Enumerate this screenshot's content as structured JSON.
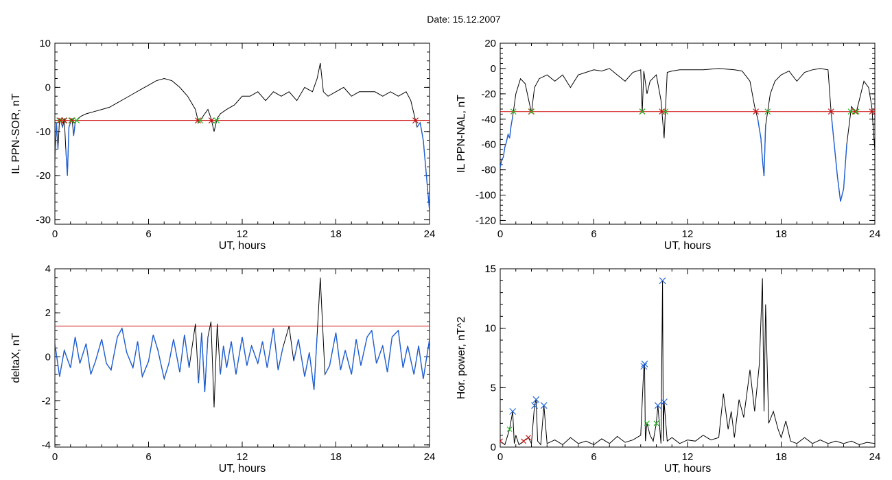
{
  "figure": {
    "title": "Date:  15.12.2007"
  },
  "colors": {
    "trace": "#000000",
    "threshold": "#cc0000",
    "highlight": "#1f5fd6",
    "marker_red": "#cc1111",
    "marker_green": "#22bb22",
    "marker_blue": "#2266dd"
  },
  "chart_data": [
    {
      "id": "ppn-sor",
      "type": "line",
      "xlabel": "UT, hours",
      "ylabel": "IL PPN-SOR, nT",
      "xlim": [
        0,
        24
      ],
      "ylim": [
        -31,
        10
      ],
      "xticks": [
        0,
        6,
        12,
        18,
        24
      ],
      "yticks": [
        -30,
        -20,
        -10,
        0,
        10
      ],
      "threshold": -7.5,
      "x": [
        0,
        0.1,
        0.2,
        0.3,
        0.4,
        0.5,
        0.6,
        0.7,
        0.8,
        0.9,
        1.0,
        1.1,
        1.2,
        1.3,
        1.5,
        1.7,
        2.0,
        2.5,
        3.0,
        3.5,
        4.0,
        4.5,
        5.0,
        5.5,
        6.0,
        6.5,
        7.0,
        7.5,
        8.0,
        8.5,
        9.0,
        9.2,
        9.4,
        9.6,
        9.8,
        10.0,
        10.2,
        10.4,
        10.6,
        11.0,
        11.5,
        12.0,
        12.5,
        13.0,
        13.5,
        14.0,
        14.5,
        15.0,
        15.5,
        16.0,
        16.5,
        16.8,
        17.0,
        17.2,
        17.5,
        18.0,
        18.5,
        19.0,
        19.5,
        20.0,
        20.5,
        21.0,
        21.5,
        22.0,
        22.5,
        22.8,
        23.0,
        23.2,
        23.4,
        23.6,
        23.8,
        24.0
      ],
      "y": [
        -17,
        -8,
        -14,
        -7,
        -8,
        -9,
        -7,
        -14,
        -20,
        -9,
        -8,
        -7,
        -11,
        -8,
        -7,
        -6.5,
        -6,
        -5.5,
        -5,
        -4.5,
        -3.5,
        -2.5,
        -1.5,
        -0.5,
        0.5,
        1.5,
        2,
        1.5,
        0,
        -2,
        -5,
        -8,
        -7,
        -6,
        -5,
        -7,
        -10,
        -7,
        -6,
        -5,
        -4,
        -2,
        -2,
        -1,
        -3,
        -1,
        -2,
        -1,
        -3,
        0,
        -1,
        2,
        5.5,
        -1,
        -2,
        -1,
        0,
        -2,
        -1,
        -1,
        -1,
        -2,
        -1,
        -2,
        -1,
        -3,
        -6,
        -9,
        -8,
        -12,
        -20,
        -28
      ]
    },
    {
      "id": "ppn-nal",
      "type": "line",
      "xlabel": "UT, hours",
      "ylabel": "IL PPN-NAL, nT",
      "xlim": [
        0,
        24
      ],
      "ylim": [
        -123,
        20
      ],
      "xticks": [
        0,
        6,
        12,
        18,
        24
      ],
      "yticks": [
        -120,
        -100,
        -80,
        -60,
        -40,
        -20,
        0,
        20
      ],
      "threshold": -34,
      "x": [
        0,
        0.1,
        0.2,
        0.3,
        0.4,
        0.5,
        0.6,
        0.7,
        0.8,
        1.0,
        1.3,
        1.6,
        2.0,
        2.2,
        2.5,
        3.0,
        3.5,
        4.0,
        4.5,
        5.0,
        5.5,
        6.0,
        6.5,
        7.0,
        7.5,
        8.0,
        8.5,
        9.0,
        9.1,
        9.2,
        9.4,
        9.6,
        10.0,
        10.3,
        10.5,
        10.7,
        11.0,
        11.5,
        12.0,
        13.0,
        14.0,
        15.0,
        15.5,
        16.0,
        16.3,
        16.5,
        16.7,
        16.8,
        16.9,
        17.0,
        17.3,
        17.6,
        18.0,
        18.5,
        19.0,
        19.5,
        20.0,
        20.5,
        21.0,
        21.2,
        21.4,
        21.6,
        21.8,
        22.0,
        22.2,
        22.5,
        22.8,
        23.0,
        23.3,
        23.6,
        23.8,
        24.0
      ],
      "y": [
        -78,
        -72,
        -70,
        -62,
        -58,
        -52,
        -55,
        -45,
        -38,
        -20,
        -8,
        -12,
        -35,
        -15,
        -8,
        -5,
        -10,
        -5,
        -15,
        -5,
        -3,
        -1,
        -2,
        0,
        -5,
        -10,
        -3,
        -1,
        -35,
        -2,
        -20,
        -10,
        -5,
        -25,
        -55,
        -3,
        -2,
        -1,
        -1,
        -1,
        0,
        -1,
        -2,
        -10,
        -30,
        -40,
        -55,
        -72,
        -85,
        -45,
        -20,
        -10,
        -5,
        -2,
        -10,
        -3,
        -1,
        0,
        -1,
        -35,
        -60,
        -85,
        -105,
        -95,
        -60,
        -30,
        -35,
        -25,
        -10,
        -15,
        -30,
        -65
      ]
    },
    {
      "id": "deltax",
      "type": "line",
      "xlabel": "UT, hours",
      "ylabel": "deltaX, nT",
      "xlim": [
        0,
        24
      ],
      "ylim": [
        -4.1,
        4
      ],
      "xticks": [
        0,
        6,
        12,
        18,
        24
      ],
      "yticks": [
        -4,
        -2,
        0,
        2,
        4
      ],
      "threshold": 1.4,
      "x": [
        0,
        0.3,
        0.6,
        1.0,
        1.3,
        1.6,
        2.0,
        2.3,
        2.6,
        3.0,
        3.3,
        3.6,
        4.0,
        4.3,
        4.6,
        5.0,
        5.3,
        5.6,
        6.0,
        6.3,
        6.6,
        7.0,
        7.3,
        7.6,
        8.0,
        8.3,
        8.6,
        9.0,
        9.2,
        9.4,
        9.6,
        9.8,
        10.0,
        10.2,
        10.4,
        10.6,
        10.8,
        11.0,
        11.3,
        11.6,
        12.0,
        12.3,
        12.6,
        13.0,
        13.3,
        13.6,
        14.0,
        14.3,
        14.6,
        15.0,
        15.3,
        15.6,
        16.0,
        16.3,
        16.6,
        16.8,
        17.0,
        17.3,
        17.6,
        18.0,
        18.3,
        18.6,
        19.0,
        19.3,
        19.6,
        20.0,
        20.3,
        20.6,
        21.0,
        21.3,
        21.6,
        22.0,
        22.3,
        22.6,
        23.0,
        23.3,
        23.6,
        24.0
      ],
      "y": [
        0.6,
        -0.9,
        0.3,
        -0.5,
        0.9,
        -0.3,
        0.6,
        -0.8,
        -0.2,
        0.8,
        -0.3,
        -0.6,
        0.9,
        1.3,
        0.2,
        -0.5,
        0.7,
        -0.9,
        -0.2,
        1.0,
        0.3,
        -1.0,
        -0.3,
        0.8,
        -0.7,
        1.0,
        -0.5,
        1.5,
        -1.2,
        1.1,
        -1.6,
        0.9,
        1.6,
        -2.3,
        1.5,
        -0.8,
        0.5,
        -0.5,
        0.7,
        -0.8,
        0.9,
        -0.4,
        0.5,
        -0.3,
        0.7,
        -0.5,
        1.3,
        -0.6,
        0.4,
        1.4,
        -0.2,
        0.8,
        -0.9,
        0.2,
        -1.5,
        1.0,
        3.6,
        -0.8,
        -0.4,
        1.1,
        -0.6,
        0.3,
        -0.8,
        0.8,
        -0.4,
        0.9,
        1.2,
        -0.3,
        0.5,
        -0.7,
        0.9,
        1.2,
        -0.5,
        0.5,
        -0.8,
        0.5,
        -1.0,
        0.8
      ]
    },
    {
      "id": "hor-power",
      "type": "line",
      "xlabel": "UT, hours",
      "ylabel": "Hor. power, nT^2",
      "xlim": [
        0,
        24
      ],
      "ylim": [
        0,
        15
      ],
      "xticks": [
        0,
        6,
        12,
        18,
        24
      ],
      "yticks": [
        0,
        5,
        10,
        15
      ],
      "x": [
        0,
        0.3,
        0.6,
        0.8,
        0.9,
        1.0,
        1.2,
        1.5,
        1.8,
        2.0,
        2.2,
        2.3,
        2.4,
        2.6,
        2.8,
        3.0,
        3.5,
        4.0,
        4.5,
        5.0,
        5.5,
        6.0,
        6.5,
        7.0,
        7.5,
        8.0,
        8.5,
        9.0,
        9.2,
        9.25,
        9.3,
        9.4,
        9.6,
        9.8,
        10.0,
        10.1,
        10.3,
        10.4,
        10.45,
        10.5,
        10.7,
        11.0,
        11.5,
        12.0,
        12.5,
        13.0,
        13.5,
        14.0,
        14.3,
        14.6,
        14.8,
        15.0,
        15.3,
        15.6,
        16.0,
        16.3,
        16.6,
        16.8,
        16.9,
        17.0,
        17.2,
        17.5,
        17.8,
        18.0,
        18.3,
        18.6,
        19.0,
        19.5,
        20.0,
        20.5,
        21.0,
        21.5,
        22.0,
        22.5,
        23.0,
        23.5,
        24.0
      ],
      "y": [
        0.5,
        0.2,
        1.5,
        3.0,
        0.3,
        1.0,
        0.2,
        0.5,
        0.8,
        0.3,
        3.5,
        4.0,
        0.5,
        0.2,
        3.5,
        0.3,
        0.6,
        0.2,
        0.8,
        0.3,
        0.5,
        0.2,
        0.7,
        0.3,
        0.9,
        0.4,
        0.6,
        1.0,
        6.8,
        7.0,
        0.5,
        2.0,
        1.0,
        0.5,
        2.0,
        3.5,
        0.3,
        14.0,
        0.5,
        3.8,
        0.5,
        0.8,
        0.3,
        0.6,
        0.5,
        1.0,
        0.6,
        0.8,
        4.5,
        1.5,
        3.0,
        0.8,
        4.0,
        2.5,
        6.5,
        3.0,
        7.0,
        14.2,
        3.0,
        12.0,
        2.0,
        3.0,
        1.5,
        0.8,
        2.2,
        0.5,
        0.3,
        0.8,
        0.3,
        0.6,
        0.3,
        0.5,
        0.3,
        0.5,
        0.2,
        0.4,
        0.3
      ]
    }
  ]
}
